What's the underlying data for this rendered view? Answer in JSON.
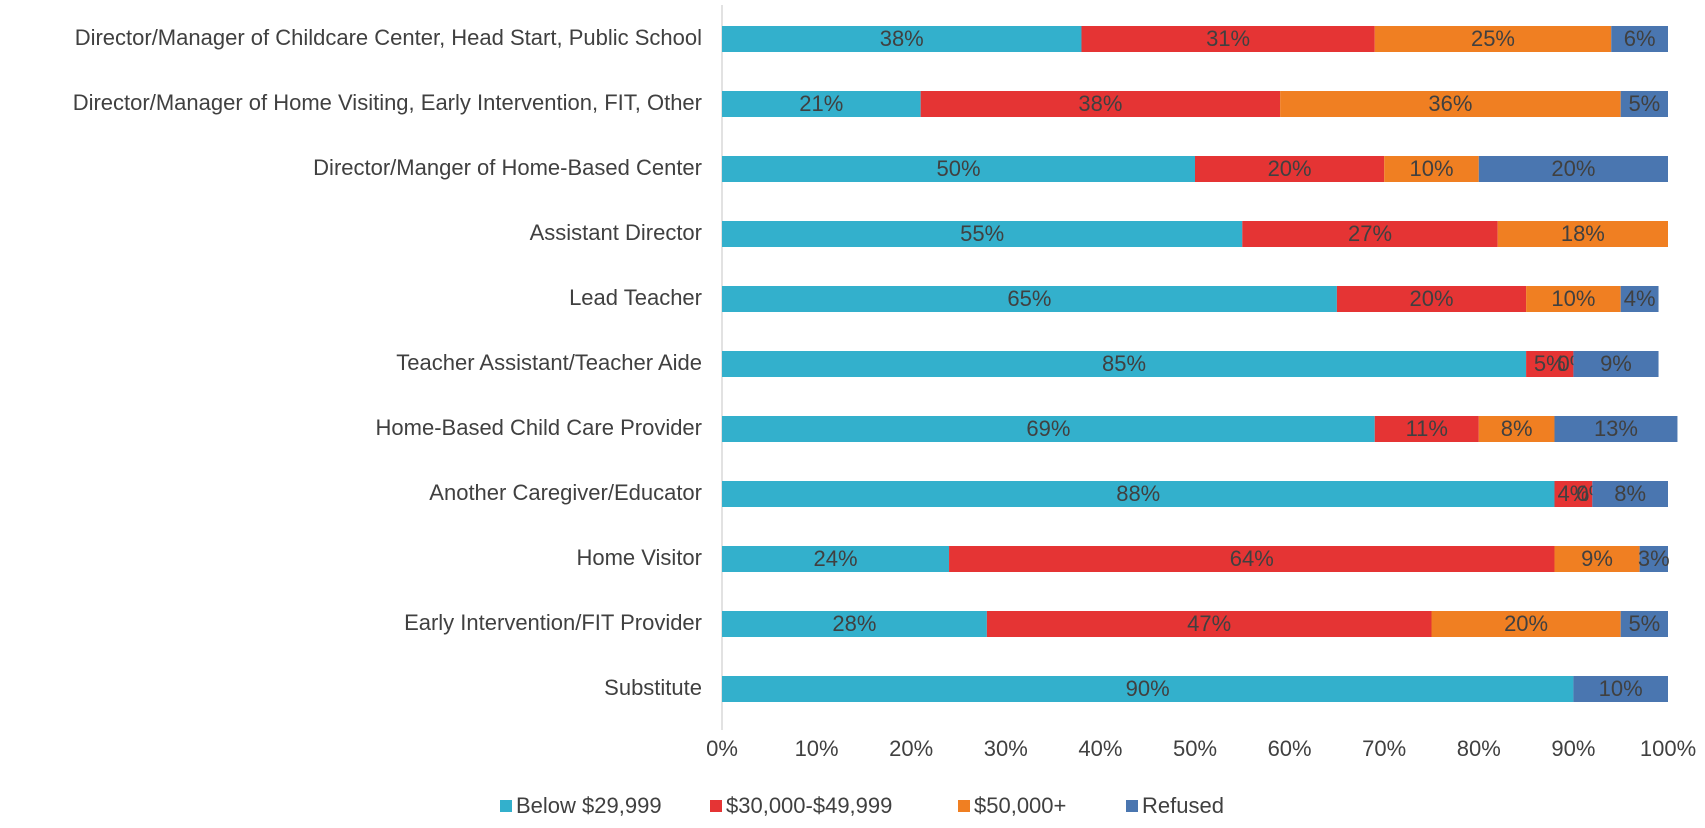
{
  "chart_data": {
    "type": "stacked_bar_horizontal",
    "categories": [
      "Director/Manager of Childcare Center, Head Start, Public School",
      "Director/Manager of Home Visiting, Early Intervention, FIT, Other",
      "Director/Manger of Home-Based Center",
      "Assistant Director",
      "Lead Teacher",
      "Teacher Assistant/Teacher Aide",
      "Home-Based Child Care Provider",
      "Another Caregiver/Educator",
      "Home Visitor",
      "Early Intervention/FIT Provider",
      "Substitute"
    ],
    "series": [
      {
        "name": "Below $29,999",
        "color": "#33b0cc",
        "values": [
          38,
          21,
          50,
          55,
          65,
          85,
          69,
          88,
          24,
          28,
          90
        ],
        "value_labels": [
          "38%",
          "21%",
          "50%",
          "55%",
          "65%",
          "85%",
          "69%",
          "88%",
          "24%",
          "28%",
          "90%"
        ]
      },
      {
        "name": "$30,000-$49,999",
        "color": "#e53434",
        "values": [
          31,
          38,
          20,
          27,
          20,
          5,
          11,
          4,
          64,
          47,
          null
        ],
        "value_labels": [
          "31%",
          "38%",
          "20%",
          "27%",
          "20%",
          "5%",
          "11%",
          "4%",
          "64%",
          "47%",
          null
        ]
      },
      {
        "name": "$50,000+",
        "color": "#f07f22",
        "values": [
          25,
          36,
          10,
          18,
          10,
          0,
          8,
          0,
          9,
          20,
          null
        ],
        "value_labels": [
          "25%",
          "36%",
          "10%",
          "18%",
          "10%",
          "0%",
          "8%",
          "0%",
          "9%",
          "20%",
          null
        ]
      },
      {
        "name": "Refused",
        "color": "#4a76b0",
        "values": [
          6,
          5,
          20,
          null,
          4,
          9,
          13,
          8,
          3,
          5,
          10
        ],
        "value_labels": [
          "6%",
          "5%",
          "20%",
          null,
          "4%",
          "9%",
          "13%",
          "8%",
          "3%",
          "5%",
          "10%"
        ]
      }
    ],
    "xlim": [
      0,
      100
    ],
    "xticks": [
      {
        "value": 0,
        "label": "0%"
      },
      {
        "value": 10,
        "label": "10%"
      },
      {
        "value": 20,
        "label": "20%"
      },
      {
        "value": 30,
        "label": "30%"
      },
      {
        "value": 40,
        "label": "40%"
      },
      {
        "value": 50,
        "label": "50%"
      },
      {
        "value": 60,
        "label": "60%"
      },
      {
        "value": 70,
        "label": "70%"
      },
      {
        "value": 80,
        "label": "80%"
      },
      {
        "value": 90,
        "label": "90%"
      },
      {
        "value": 100,
        "label": "100%"
      }
    ],
    "legend": "bottom"
  }
}
